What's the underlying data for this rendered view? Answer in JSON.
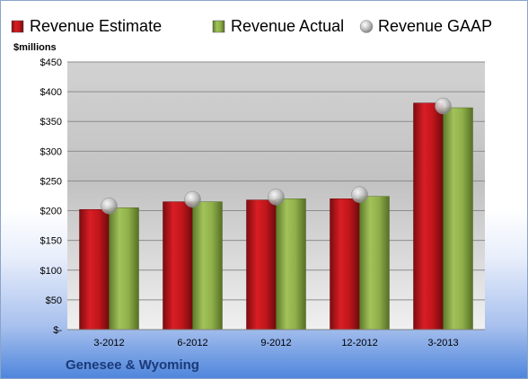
{
  "chart_data": {
    "type": "bar",
    "categories": [
      "3-2012",
      "6-2012",
      "9-2012",
      "12-2012",
      "3-2013"
    ],
    "series": [
      {
        "name": "Revenue Estimate",
        "kind": "bar",
        "color": "#c0161b",
        "values": [
          202,
          215,
          218,
          220,
          381
        ]
      },
      {
        "name": "Revenue Actual",
        "kind": "bar",
        "color": "#8fb04a",
        "values": [
          205,
          215,
          220,
          224,
          373
        ]
      },
      {
        "name": "Revenue GAAP",
        "kind": "marker",
        "color": "#b0b0b0",
        "values": [
          208,
          219,
          223,
          227,
          376
        ]
      }
    ],
    "ylabel": "$millions",
    "ylim": [
      0,
      450
    ],
    "yticks": [
      0,
      50,
      100,
      150,
      200,
      250,
      300,
      350,
      400,
      450
    ],
    "ytick_labels": [
      "$-",
      "$50",
      "$100",
      "$150",
      "$200",
      "$250",
      "$300",
      "$350",
      "$400",
      "$450"
    ],
    "grid": true,
    "legend": "top"
  },
  "footer": {
    "company": "Genesee & Wyoming"
  }
}
